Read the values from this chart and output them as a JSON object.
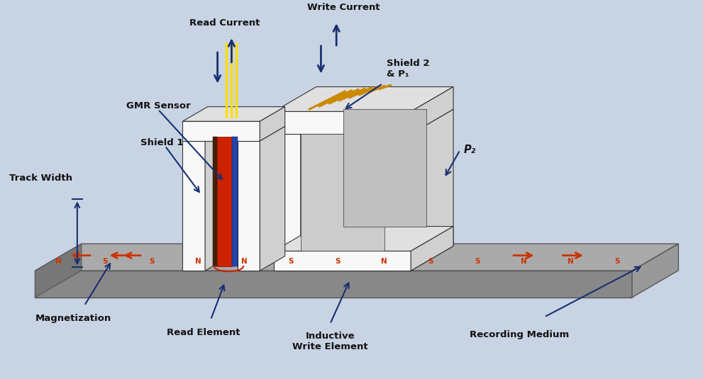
{
  "bg_color": "#c8d4e4",
  "fig_width": 9.91,
  "fig_height": 5.35,
  "labels": {
    "read_current": "Read Current",
    "write_current": "Write Current",
    "shield2_p1": "Shield 2\n& P₁",
    "gmr_sensor": "GMR Sensor",
    "shield1": "Shield 1",
    "p2": "P₂",
    "track_width": "Track Width",
    "magnetization": "Magnetization",
    "read_element": "Read Element",
    "inductive_write": "Inductive\nWrite Element",
    "recording_medium": "Recording Medium"
  },
  "yellow_wire_color": "#ffdd00",
  "orange_wire_color": "#cc8800",
  "arrow_color": "#1a3070",
  "medium_arrow_color": "#cc3300",
  "label_fontsize": 9.5,
  "label_color": "#111111",
  "head_white": "#f8f8f8",
  "head_top": "#e0e0e0",
  "head_side": "#d0d0d0",
  "head_edge": "#333333",
  "slab_front": "#888888",
  "slab_top": "#aaaaaa",
  "slab_side": "#999999",
  "slab_edge": "#555555"
}
